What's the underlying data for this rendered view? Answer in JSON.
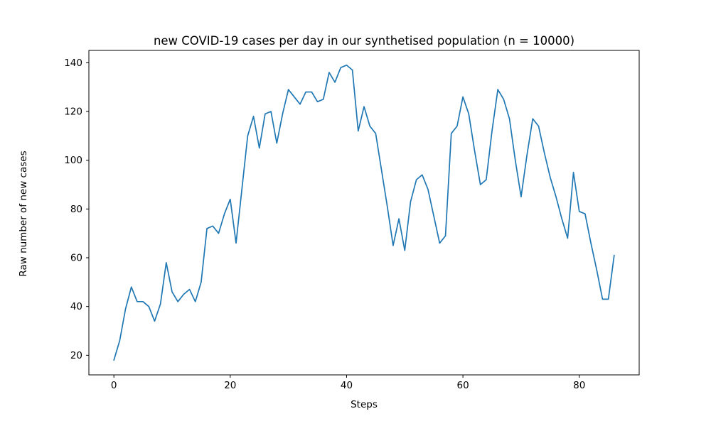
{
  "chart_data": {
    "type": "line",
    "title": "new COVID-19 cases per day in our synthetised population (n = 10000)",
    "xlabel": "Steps",
    "ylabel": "Raw number of new cases",
    "x_ticks": [
      0,
      20,
      40,
      60,
      80
    ],
    "y_ticks": [
      20,
      40,
      60,
      80,
      100,
      120,
      140
    ],
    "xlim": [
      -4.3,
      90.3
    ],
    "ylim": [
      11.95,
      145.05
    ],
    "x_start": 0,
    "x_step": 1,
    "n_points": 87,
    "values": [
      18,
      26,
      39,
      48,
      42,
      42,
      40,
      34,
      41,
      58,
      46,
      42,
      45,
      47,
      42,
      50,
      72,
      73,
      70,
      78,
      84,
      66,
      88,
      110,
      118,
      105,
      119,
      120,
      107,
      119,
      129,
      126,
      123,
      128,
      128,
      124,
      125,
      136,
      132,
      138,
      139,
      137,
      112,
      122,
      114,
      111,
      96,
      81,
      65,
      76,
      63,
      83,
      92,
      94,
      88,
      77,
      66,
      69,
      111,
      114,
      126,
      119,
      104,
      90,
      92,
      112,
      129,
      125,
      117,
      100,
      85,
      102,
      117,
      114,
      103,
      93,
      85,
      76,
      68,
      95,
      79,
      78,
      66,
      55,
      43,
      43,
      61
    ],
    "line_color": "#1f77b4",
    "axis_color": "#000000",
    "grid": false,
    "legend": null
  }
}
